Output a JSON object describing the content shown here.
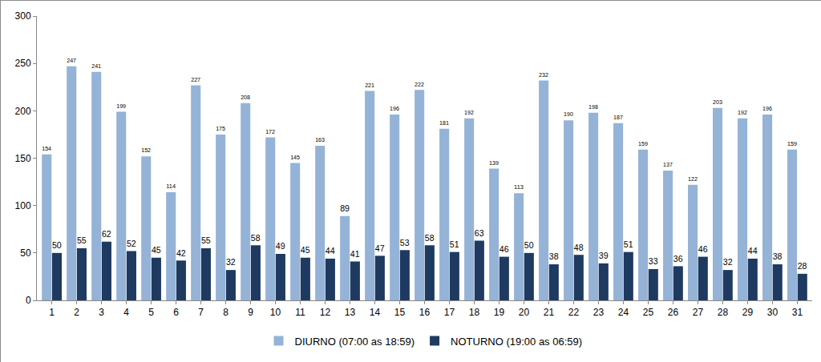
{
  "chart_data": {
    "type": "bar",
    "categories": [
      "1",
      "2",
      "3",
      "4",
      "5",
      "6",
      "7",
      "8",
      "9",
      "10",
      "11",
      "12",
      "13",
      "14",
      "15",
      "16",
      "17",
      "18",
      "19",
      "20",
      "21",
      "22",
      "23",
      "24",
      "25",
      "26",
      "27",
      "28",
      "29",
      "30",
      "31"
    ],
    "series": [
      {
        "name": "DIURNO (07:00 as 18:59)",
        "color": "#95b3d7",
        "values": [
          154,
          247,
          241,
          199,
          152,
          114,
          227,
          175,
          208,
          172,
          145,
          163,
          89,
          221,
          196,
          222,
          181,
          192,
          139,
          113,
          232,
          190,
          198,
          187,
          159,
          137,
          122,
          203,
          192,
          196,
          159
        ]
      },
      {
        "name": "NOTURNO (19:00 as 06:59)",
        "color": "#1f3a60",
        "values": [
          50,
          55,
          62,
          52,
          45,
          42,
          55,
          32,
          58,
          49,
          45,
          44,
          41,
          47,
          53,
          58,
          51,
          63,
          46,
          50,
          38,
          48,
          39,
          51,
          33,
          36,
          46,
          32,
          44,
          38,
          28
        ]
      }
    ],
    "ylim": [
      0,
      300
    ],
    "yticks": [
      0,
      50,
      100,
      150,
      200,
      250,
      300
    ],
    "grid": false,
    "legend": "bottom",
    "data_labels": true
  }
}
